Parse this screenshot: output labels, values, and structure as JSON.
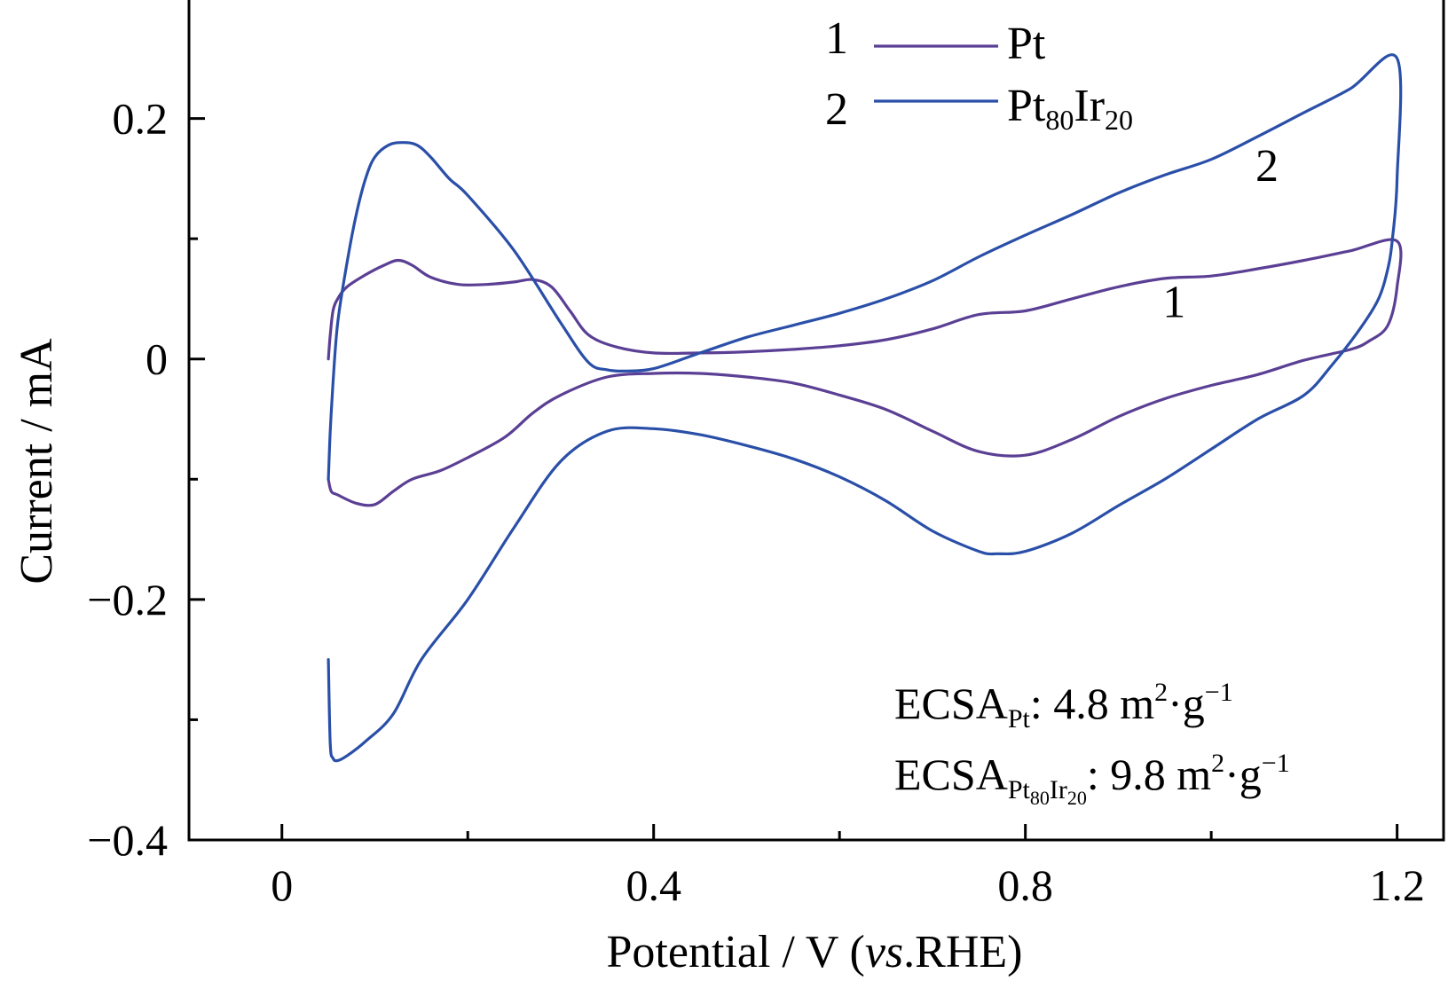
{
  "chart_data": {
    "type": "line",
    "xlabel": {
      "main": "Potential / V (",
      "italic": "vs",
      "tail": ".RHE)"
    },
    "ylabel": "Current / mA",
    "xlim": [
      -0.1,
      1.25
    ],
    "ylim": [
      -0.4,
      0.3
    ],
    "x_ticks": [
      0,
      0.4,
      0.8,
      1.2
    ],
    "x_tick_labels": [
      "0",
      "0.4",
      "0.8",
      "1.2"
    ],
    "x_minor_ticks": [
      0.2,
      0.6,
      1.0
    ],
    "y_ticks": [
      0.2,
      0,
      -0.2,
      -0.4
    ],
    "y_tick_labels": [
      "0.2",
      "0",
      "−0.2",
      "−0.4"
    ],
    "y_minor_ticks": [
      0.1,
      -0.1,
      -0.3
    ],
    "grid": false,
    "legend_position": "top-center",
    "legend": [
      {
        "number": "1",
        "label": "Pt",
        "sub1": "",
        "mid": "",
        "sub2": ""
      },
      {
        "number": "2",
        "label": "Pt",
        "sub1": "80",
        "mid": "Ir",
        "sub2": "20"
      }
    ],
    "curve_labels": [
      {
        "text": "1",
        "x": 0.96,
        "y": 0.035
      },
      {
        "text": "2",
        "x": 1.06,
        "y": 0.148
      }
    ],
    "annotations": [
      {
        "prefix": "ECSA",
        "sub": "Pt",
        "value": ": 4.8 m",
        "sup1": "2",
        "unit": "·g",
        "sup2": "−1"
      },
      {
        "prefix": "ECSA",
        "sub": "Pt80Ir20",
        "value": ": 9.8 m",
        "sup1": "2",
        "unit": "·g",
        "sup2": "−1"
      }
    ],
    "series": [
      {
        "id": 1,
        "color": "#5b3f94",
        "x": [
          0.05,
          0.052,
          0.055,
          0.06,
          0.07,
          0.09,
          0.11,
          0.125,
          0.14,
          0.16,
          0.19,
          0.22,
          0.25,
          0.27,
          0.29,
          0.31,
          0.33,
          0.36,
          0.4,
          0.45,
          0.5,
          0.55,
          0.6,
          0.65,
          0.7,
          0.75,
          0.8,
          0.85,
          0.9,
          0.95,
          1.0,
          1.05,
          1.1,
          1.15,
          1.2,
          1.2,
          1.19,
          1.17,
          1.15,
          1.1,
          1.05,
          1.0,
          0.95,
          0.9,
          0.85,
          0.8,
          0.75,
          0.7,
          0.65,
          0.6,
          0.55,
          0.5,
          0.45,
          0.4,
          0.35,
          0.3,
          0.27,
          0.24,
          0.2,
          0.17,
          0.14,
          0.12,
          0.1,
          0.08,
          0.06,
          0.053,
          0.05
        ],
        "y": [
          0.0,
          0.02,
          0.04,
          0.05,
          0.06,
          0.07,
          0.078,
          0.082,
          0.078,
          0.068,
          0.062,
          0.062,
          0.064,
          0.066,
          0.06,
          0.04,
          0.02,
          0.01,
          0.005,
          0.005,
          0.006,
          0.008,
          0.011,
          0.016,
          0.025,
          0.037,
          0.04,
          0.05,
          0.06,
          0.067,
          0.069,
          0.075,
          0.082,
          0.09,
          0.098,
          0.06,
          0.028,
          0.015,
          0.008,
          -0.001,
          -0.013,
          -0.022,
          -0.033,
          -0.048,
          -0.067,
          -0.08,
          -0.077,
          -0.06,
          -0.042,
          -0.03,
          -0.02,
          -0.015,
          -0.012,
          -0.012,
          -0.015,
          -0.03,
          -0.045,
          -0.065,
          -0.082,
          -0.093,
          -0.1,
          -0.11,
          -0.121,
          -0.12,
          -0.113,
          -0.11,
          -0.1
        ]
      },
      {
        "id": 2,
        "color": "#2a4fa8",
        "x": [
          0.05,
          0.052,
          0.055,
          0.06,
          0.07,
          0.08,
          0.09,
          0.1,
          0.115,
          0.13,
          0.145,
          0.16,
          0.18,
          0.2,
          0.25,
          0.3,
          0.33,
          0.35,
          0.37,
          0.4,
          0.45,
          0.5,
          0.55,
          0.6,
          0.65,
          0.7,
          0.75,
          0.8,
          0.85,
          0.9,
          0.95,
          1.0,
          1.05,
          1.1,
          1.15,
          1.2,
          1.2,
          1.195,
          1.19,
          1.18,
          1.16,
          1.13,
          1.1,
          1.05,
          1.0,
          0.95,
          0.9,
          0.85,
          0.8,
          0.77,
          0.75,
          0.7,
          0.65,
          0.6,
          0.55,
          0.5,
          0.45,
          0.4,
          0.35,
          0.3,
          0.25,
          0.2,
          0.15,
          0.12,
          0.09,
          0.07,
          0.06,
          0.055,
          0.052,
          0.05
        ],
        "y": [
          -0.1,
          -0.06,
          -0.02,
          0.03,
          0.08,
          0.12,
          0.15,
          0.168,
          0.178,
          0.18,
          0.178,
          0.168,
          0.15,
          0.136,
          0.09,
          0.03,
          -0.003,
          -0.009,
          -0.01,
          -0.008,
          0.005,
          0.018,
          0.028,
          0.038,
          0.05,
          0.065,
          0.085,
          0.103,
          0.12,
          0.138,
          0.153,
          0.166,
          0.185,
          0.205,
          0.225,
          0.25,
          0.15,
          0.1,
          0.075,
          0.05,
          0.025,
          -0.005,
          -0.03,
          -0.05,
          -0.075,
          -0.1,
          -0.122,
          -0.145,
          -0.16,
          -0.162,
          -0.16,
          -0.143,
          -0.118,
          -0.098,
          -0.083,
          -0.072,
          -0.063,
          -0.058,
          -0.06,
          -0.085,
          -0.14,
          -0.2,
          -0.25,
          -0.295,
          -0.318,
          -0.33,
          -0.334,
          -0.332,
          -0.32,
          -0.25
        ]
      }
    ]
  }
}
